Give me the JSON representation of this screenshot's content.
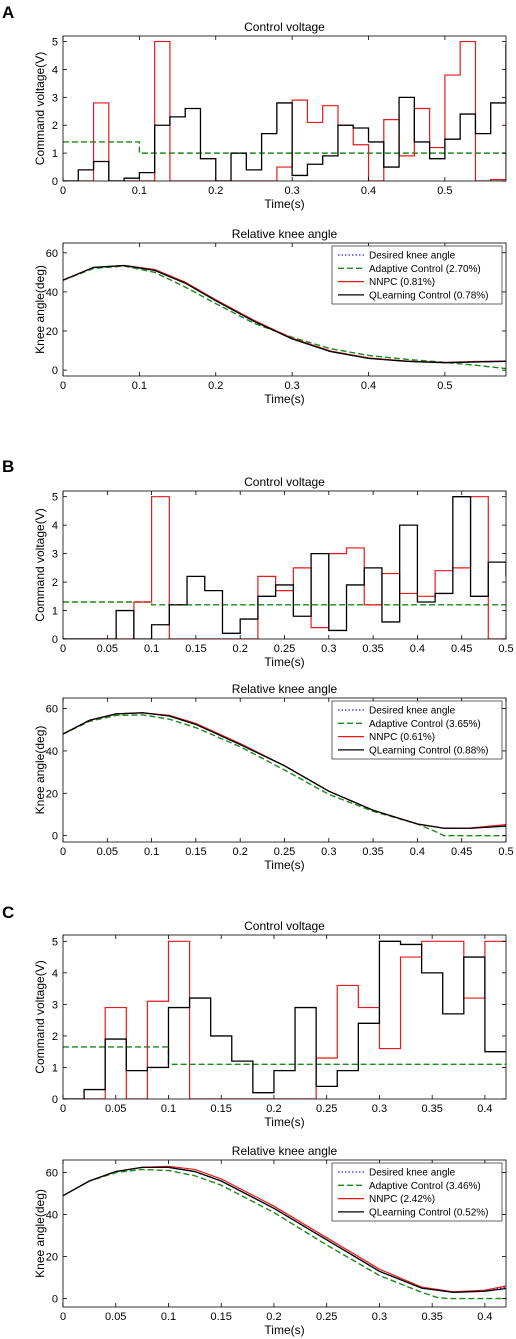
{
  "figure": {
    "panel_labels": [
      "A",
      "B",
      "C"
    ]
  },
  "legend_labels": {
    "A": [
      "Desired knee angle",
      "Adaptive Control (2.70%)",
      "NNPC (0.81%)",
      "QLearning Control (0.78%)"
    ],
    "B": [
      "Desired knee angle",
      "Adaptive Control (3.65%)",
      "NNPC (0.61%)",
      "QLearning Control (0.88%)"
    ],
    "C": [
      "Desired knee angle",
      "Adaptive Control (3.46%)",
      "NNPC (2.42%)",
      "QLearning Control (0.52%)"
    ]
  },
  "colors": {
    "desired": "#2a2ad6",
    "adaptive": "#1a8a1a",
    "nnpc": "#e8191a",
    "qlearning": "#000000"
  },
  "chart_data": [
    {
      "id": "A-voltage",
      "panel": "A",
      "type": "line",
      "step": true,
      "title": "Control voltage",
      "xlabel": "Time(s)",
      "ylabel": "Command voltage(V)",
      "xlim": [
        0,
        0.58
      ],
      "ylim": [
        0,
        5.2
      ],
      "xticks": [
        0,
        0.1,
        0.2,
        0.3,
        0.4,
        0.5
      ],
      "yticks": [
        0,
        1,
        2,
        3,
        4,
        5
      ],
      "grid": false,
      "series": [
        {
          "key": "adaptive",
          "x": [
            0,
            0.02,
            0.04,
            0.06,
            0.08,
            0.1,
            0.1,
            0.12,
            0.14,
            0.16,
            0.18,
            0.2,
            0.22,
            0.24,
            0.26,
            0.28,
            0.3,
            0.32,
            0.34,
            0.36,
            0.38,
            0.4,
            0.42,
            0.44,
            0.46,
            0.48,
            0.5,
            0.52,
            0.54,
            0.56,
            0.58
          ],
          "y": [
            1.4,
            1.4,
            1.4,
            1.4,
            1.4,
            1.4,
            1.0,
            1.0,
            1.0,
            1.0,
            1.0,
            1.0,
            1.0,
            1.0,
            1.0,
            1.0,
            1.0,
            1.0,
            1.0,
            1.0,
            1.0,
            1.0,
            1.0,
            1.0,
            1.0,
            1.0,
            1.0,
            1.0,
            1.0,
            1.0,
            1.0
          ]
        },
        {
          "key": "nnpc",
          "x": [
            0,
            0.02,
            0.04,
            0.06,
            0.08,
            0.1,
            0.12,
            0.14,
            0.16,
            0.18,
            0.2,
            0.22,
            0.24,
            0.26,
            0.28,
            0.3,
            0.32,
            0.34,
            0.36,
            0.38,
            0.4,
            0.42,
            0.44,
            0.46,
            0.48,
            0.5,
            0.52,
            0.54,
            0.56,
            0.58
          ],
          "y": [
            0,
            0,
            2.8,
            0,
            0,
            0,
            5.0,
            0,
            0,
            0,
            0,
            0,
            0,
            0,
            0.5,
            2.9,
            2.1,
            2.7,
            2.0,
            1.3,
            0,
            2.2,
            0.9,
            2.6,
            1.2,
            3.8,
            5.0,
            0,
            0.05,
            4.9
          ]
        },
        {
          "key": "qlearning",
          "x": [
            0,
            0.02,
            0.04,
            0.06,
            0.08,
            0.1,
            0.12,
            0.14,
            0.16,
            0.18,
            0.2,
            0.22,
            0.24,
            0.26,
            0.28,
            0.3,
            0.32,
            0.34,
            0.36,
            0.38,
            0.4,
            0.42,
            0.44,
            0.46,
            0.48,
            0.5,
            0.52,
            0.54,
            0.56,
            0.58
          ],
          "y": [
            0,
            0.4,
            0.7,
            0,
            0.1,
            0.3,
            2.0,
            2.3,
            2.6,
            0.8,
            0,
            1.0,
            0.4,
            1.7,
            2.8,
            0.2,
            0.6,
            0.9,
            2.0,
            1.9,
            1.4,
            0.5,
            3.0,
            1.4,
            0.8,
            1.5,
            2.4,
            1.7,
            2.8,
            4.9
          ]
        }
      ]
    },
    {
      "id": "A-knee",
      "panel": "A",
      "type": "line",
      "title": "Relative knee angle",
      "xlabel": "Time(s)",
      "ylabel": "Knee angle(deg)",
      "xlim": [
        0,
        0.58
      ],
      "ylim": [
        -3,
        65
      ],
      "xticks": [
        0,
        0.1,
        0.2,
        0.3,
        0.4,
        0.5
      ],
      "yticks": [
        0,
        20,
        40,
        60
      ],
      "grid": false,
      "legend_position": "top-right",
      "series": [
        {
          "key": "desired",
          "x": [
            0,
            0.04,
            0.08,
            0.12,
            0.16,
            0.2,
            0.25,
            0.3,
            0.35,
            0.4,
            0.45,
            0.5,
            0.54,
            0.58
          ],
          "y": [
            46,
            52.5,
            53.5,
            51,
            44.5,
            35.5,
            25,
            16,
            9.5,
            6,
            4.5,
            3.8,
            4.2,
            4.5
          ]
        },
        {
          "key": "adaptive",
          "x": [
            0,
            0.04,
            0.08,
            0.12,
            0.16,
            0.2,
            0.25,
            0.3,
            0.35,
            0.4,
            0.45,
            0.5,
            0.54,
            0.58
          ],
          "y": [
            46,
            52,
            53.2,
            50,
            42.5,
            34,
            24,
            16.8,
            11,
            7.5,
            5.5,
            4,
            2.5,
            0.8
          ]
        },
        {
          "key": "nnpc",
          "x": [
            0,
            0.04,
            0.08,
            0.12,
            0.16,
            0.2,
            0.25,
            0.3,
            0.35,
            0.4,
            0.45,
            0.5,
            0.54,
            0.58
          ],
          "y": [
            46,
            52.5,
            53.5,
            51.5,
            45,
            36,
            25.5,
            16.3,
            9.8,
            6.2,
            4.6,
            3.9,
            4.4,
            4.6
          ]
        },
        {
          "key": "qlearning",
          "x": [
            0,
            0.04,
            0.08,
            0.12,
            0.16,
            0.2,
            0.25,
            0.3,
            0.35,
            0.4,
            0.45,
            0.5,
            0.54,
            0.58
          ],
          "y": [
            46,
            52.5,
            53.5,
            51,
            44.5,
            35.5,
            25,
            16,
            9.5,
            6,
            4.5,
            3.8,
            4.2,
            4.5
          ]
        }
      ]
    },
    {
      "id": "B-voltage",
      "panel": "B",
      "type": "line",
      "step": true,
      "title": "Control voltage",
      "xlabel": "Time(s)",
      "ylabel": "Command voltage(V)",
      "xlim": [
        0,
        0.5
      ],
      "ylim": [
        0,
        5.2
      ],
      "xticks": [
        0,
        0.05,
        0.1,
        0.15,
        0.2,
        0.25,
        0.3,
        0.35,
        0.4,
        0.45,
        0.5
      ],
      "yticks": [
        0,
        1,
        2,
        3,
        4,
        5
      ],
      "grid": false,
      "series": [
        {
          "key": "adaptive",
          "x": [
            0,
            0.1,
            0.1,
            0.5
          ],
          "y": [
            1.3,
            1.3,
            1.2,
            1.2
          ]
        },
        {
          "key": "nnpc",
          "x": [
            0,
            0.02,
            0.04,
            0.06,
            0.08,
            0.1,
            0.12,
            0.14,
            0.16,
            0.18,
            0.2,
            0.22,
            0.24,
            0.26,
            0.28,
            0.3,
            0.32,
            0.34,
            0.36,
            0.38,
            0.4,
            0.42,
            0.44,
            0.46,
            0.48,
            0.5
          ],
          "y": [
            0,
            0,
            0,
            0,
            1.3,
            5.0,
            0,
            0,
            0,
            0,
            0,
            2.2,
            1.7,
            2.5,
            0.4,
            3.0,
            3.2,
            1.2,
            2.3,
            1.6,
            1.5,
            2.4,
            2.5,
            5.0,
            0,
            0
          ]
        },
        {
          "key": "qlearning",
          "x": [
            0,
            0.02,
            0.04,
            0.06,
            0.08,
            0.1,
            0.12,
            0.14,
            0.16,
            0.18,
            0.2,
            0.22,
            0.24,
            0.26,
            0.28,
            0.3,
            0.32,
            0.34,
            0.36,
            0.38,
            0.4,
            0.42,
            0.44,
            0.46,
            0.48,
            0.5
          ],
          "y": [
            0,
            0,
            0,
            1.0,
            0,
            0.5,
            1.2,
            2.2,
            1.7,
            0.2,
            0.7,
            1.5,
            1.9,
            0.8,
            3.0,
            0.3,
            1.9,
            2.5,
            0.6,
            4.0,
            1.3,
            1.6,
            5.0,
            1.5,
            2.7,
            2.2
          ]
        }
      ]
    },
    {
      "id": "B-knee",
      "panel": "B",
      "type": "line",
      "title": "Relative knee angle",
      "xlabel": "Time(s)",
      "ylabel": "Knee angle(deg)",
      "xlim": [
        0,
        0.5
      ],
      "ylim": [
        -3,
        65
      ],
      "xticks": [
        0,
        0.05,
        0.1,
        0.15,
        0.2,
        0.25,
        0.3,
        0.35,
        0.4,
        0.45,
        0.5
      ],
      "yticks": [
        0,
        20,
        40,
        60
      ],
      "grid": false,
      "legend_position": "top-right",
      "series": [
        {
          "key": "desired",
          "x": [
            0,
            0.03,
            0.06,
            0.09,
            0.12,
            0.15,
            0.2,
            0.25,
            0.3,
            0.35,
            0.4,
            0.43,
            0.46,
            0.5
          ],
          "y": [
            48,
            54.5,
            57.5,
            58,
            56.5,
            52.5,
            43,
            33,
            21,
            12,
            5.5,
            3.5,
            3.5,
            5
          ]
        },
        {
          "key": "adaptive",
          "x": [
            0,
            0.03,
            0.06,
            0.09,
            0.12,
            0.15,
            0.2,
            0.25,
            0.3,
            0.35,
            0.4,
            0.42,
            0.43,
            0.46,
            0.5
          ],
          "y": [
            48,
            54,
            56.8,
            57,
            55,
            51,
            42,
            31,
            19.5,
            11.5,
            5.5,
            2,
            0,
            0,
            0
          ]
        },
        {
          "key": "nnpc",
          "x": [
            0,
            0.03,
            0.06,
            0.09,
            0.12,
            0.15,
            0.2,
            0.25,
            0.3,
            0.35,
            0.4,
            0.43,
            0.46,
            0.5
          ],
          "y": [
            48,
            54.5,
            57.5,
            58,
            56.8,
            53,
            43.5,
            33,
            21,
            12,
            5.5,
            3.5,
            3.6,
            5.2
          ]
        },
        {
          "key": "qlearning",
          "x": [
            0,
            0.03,
            0.06,
            0.09,
            0.12,
            0.15,
            0.2,
            0.25,
            0.3,
            0.35,
            0.4,
            0.43,
            0.46,
            0.5
          ],
          "y": [
            48,
            54.5,
            57.5,
            58,
            56.5,
            52.5,
            43,
            33,
            21,
            12,
            5.5,
            3.5,
            3.5,
            4.5
          ]
        }
      ]
    },
    {
      "id": "C-voltage",
      "panel": "C",
      "type": "line",
      "step": true,
      "title": "Control voltage",
      "xlabel": "Time(s)",
      "ylabel": "Command voltage(V)",
      "xlim": [
        0,
        0.42
      ],
      "ylim": [
        0,
        5.2
      ],
      "xticks": [
        0,
        0.05,
        0.1,
        0.15,
        0.2,
        0.25,
        0.3,
        0.35,
        0.4
      ],
      "yticks": [
        0,
        1,
        2,
        3,
        4,
        5
      ],
      "grid": false,
      "series": [
        {
          "key": "adaptive",
          "x": [
            0,
            0.1,
            0.1,
            0.42
          ],
          "y": [
            1.65,
            1.65,
            1.1,
            1.1
          ]
        },
        {
          "key": "nnpc",
          "x": [
            0,
            0.02,
            0.04,
            0.06,
            0.08,
            0.1,
            0.12,
            0.14,
            0.16,
            0.18,
            0.2,
            0.22,
            0.24,
            0.26,
            0.28,
            0.3,
            0.32,
            0.34,
            0.36,
            0.38,
            0.4,
            0.42
          ],
          "y": [
            0,
            0,
            2.9,
            0,
            3.1,
            5.0,
            0,
            0,
            0,
            0,
            0,
            0,
            1.3,
            3.6,
            2.9,
            1.6,
            4.5,
            5.0,
            5.0,
            3.2,
            5.0,
            5.0
          ]
        },
        {
          "key": "qlearning",
          "x": [
            0,
            0.02,
            0.04,
            0.06,
            0.08,
            0.1,
            0.12,
            0.14,
            0.16,
            0.18,
            0.2,
            0.22,
            0.24,
            0.26,
            0.28,
            0.3,
            0.32,
            0.34,
            0.36,
            0.38,
            0.4,
            0.42
          ],
          "y": [
            0,
            0.3,
            1.9,
            0.9,
            1.0,
            2.9,
            3.2,
            2.0,
            1.2,
            0.2,
            0.9,
            2.9,
            0.4,
            0.9,
            2.4,
            5.0,
            4.9,
            4.0,
            2.7,
            4.5,
            1.5,
            1.5
          ]
        }
      ]
    },
    {
      "id": "C-knee",
      "panel": "C",
      "type": "line",
      "title": "Relative knee angle",
      "xlabel": "Time(s)",
      "ylabel": "Knee angle(deg)",
      "xlim": [
        0,
        0.42
      ],
      "ylim": [
        -4,
        66
      ],
      "xticks": [
        0,
        0.05,
        0.1,
        0.15,
        0.2,
        0.25,
        0.3,
        0.35,
        0.4
      ],
      "yticks": [
        0,
        20,
        40,
        60
      ],
      "grid": false,
      "legend_position": "top-right",
      "series": [
        {
          "key": "desired",
          "x": [
            0,
            0.025,
            0.05,
            0.075,
            0.1,
            0.125,
            0.15,
            0.2,
            0.25,
            0.3,
            0.34,
            0.37,
            0.4,
            0.42
          ],
          "y": [
            49,
            56,
            60.5,
            62.5,
            62.5,
            60.5,
            56,
            43,
            28,
            13,
            5,
            3,
            3.8,
            5.5
          ]
        },
        {
          "key": "adaptive",
          "x": [
            0,
            0.025,
            0.05,
            0.075,
            0.1,
            0.125,
            0.15,
            0.2,
            0.25,
            0.3,
            0.34,
            0.355,
            0.365,
            0.4,
            0.42
          ],
          "y": [
            49,
            56,
            60,
            61.5,
            61,
            58.5,
            54,
            41,
            25.5,
            11,
            3,
            0.5,
            0,
            0,
            0
          ]
        },
        {
          "key": "nnpc",
          "x": [
            0,
            0.025,
            0.05,
            0.075,
            0.1,
            0.125,
            0.15,
            0.2,
            0.25,
            0.3,
            0.34,
            0.37,
            0.4,
            0.42
          ],
          "y": [
            49,
            56,
            60.5,
            62.5,
            63,
            61.5,
            57,
            44,
            29,
            14,
            5.5,
            3.2,
            4,
            6
          ]
        },
        {
          "key": "qlearning",
          "x": [
            0,
            0.025,
            0.05,
            0.075,
            0.1,
            0.125,
            0.15,
            0.2,
            0.25,
            0.3,
            0.34,
            0.37,
            0.4,
            0.42
          ],
          "y": [
            49,
            56,
            60.5,
            62.5,
            62.5,
            60.5,
            56,
            43,
            28,
            13,
            5,
            3,
            3.5,
            4.8
          ]
        }
      ]
    }
  ]
}
